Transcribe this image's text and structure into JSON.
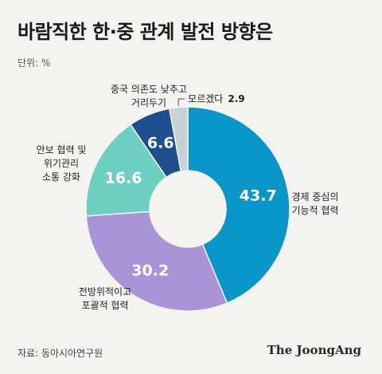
{
  "header": {
    "title": "바람직한 한·중 관계 발전 방향은",
    "unit": "단위: %"
  },
  "chart_data": {
    "type": "pie",
    "donut": true,
    "slices": [
      {
        "label_lines": [
          "경제 중심의",
          "기능적 협력"
        ],
        "value": 43.7,
        "value_text": "43.7",
        "color": "#0a96c8"
      },
      {
        "label_lines": [
          "전방위적이고",
          "포괄적 협력"
        ],
        "value": 30.2,
        "value_text": "30.2",
        "color": "#a994d8"
      },
      {
        "label_lines": [
          "안보 협력 및",
          "위기관리",
          "소통 강화"
        ],
        "value": 16.6,
        "value_text": "16.6",
        "color": "#6dcfbf"
      },
      {
        "label_lines": [
          "중국 의존도 낮추고",
          "거리두기"
        ],
        "value": 6.6,
        "value_text": "6.6",
        "color": "#1f4e8c"
      },
      {
        "label_lines": [
          "모르겠다"
        ],
        "value": 2.9,
        "value_text": "2.9",
        "color": "#c9d0d6"
      }
    ]
  },
  "footer": {
    "source": "자료: 동아시아연구원",
    "brand": "The JoongAng"
  }
}
